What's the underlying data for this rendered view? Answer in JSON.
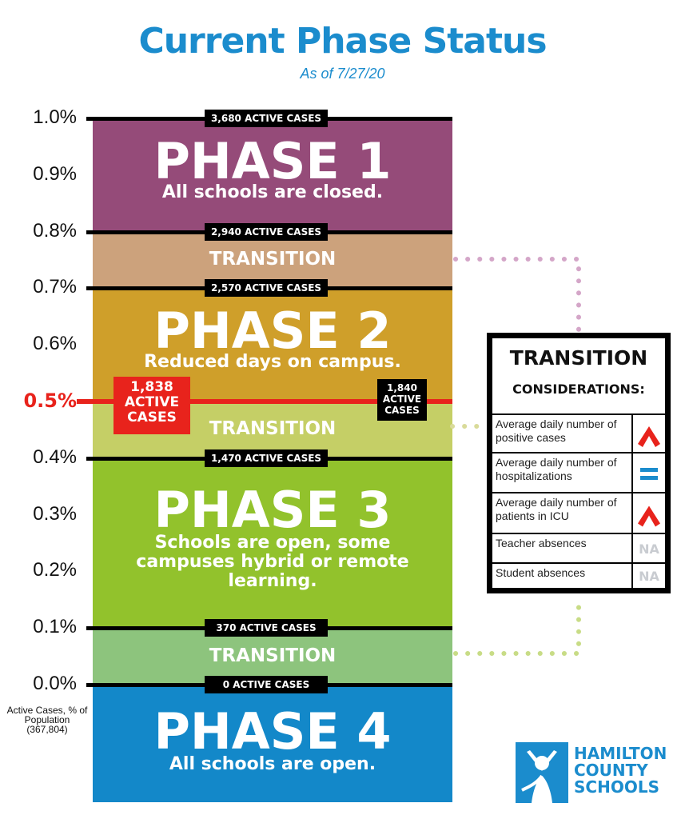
{
  "header": {
    "title": "Current Phase Status",
    "subtitle": "As of 7/27/20"
  },
  "chart_data": {
    "type": "bar",
    "title": "Current Phase Status",
    "subtitle": "As of 7/27/20",
    "ylabel": "Active Cases, % of Population (367,804)",
    "ylim": [
      0,
      1.0
    ],
    "y_ticks": [
      "1.0%",
      "0.9%",
      "0.8%",
      "0.7%",
      "0.6%",
      "0.5%",
      "0.4%",
      "0.3%",
      "0.2%",
      "0.1%",
      "0.0%"
    ],
    "bands": [
      {
        "name": "PHASE 1",
        "subtitle": "All schools are closed.",
        "from": 0.8,
        "to": 1.0,
        "color": "#954b79"
      },
      {
        "name": "TRANSITION",
        "from": 0.7,
        "to": 0.8,
        "color": "#cca27c"
      },
      {
        "name": "PHASE 2",
        "subtitle": "Reduced days on campus.",
        "from": 0.5,
        "to": 0.7,
        "color": "#cf9f2a"
      },
      {
        "name": "TRANSITION",
        "from": 0.4,
        "to": 0.5,
        "color": "#c5cf66"
      },
      {
        "name": "PHASE 3",
        "subtitle": "Schools are open, some campuses hybrid or remote learning.",
        "from": 0.1,
        "to": 0.4,
        "color": "#92c22c"
      },
      {
        "name": "TRANSITION",
        "from": 0.0,
        "to": 0.1,
        "color": "#8dc47d"
      },
      {
        "name": "PHASE 4",
        "subtitle": "All schools are open.",
        "from": null,
        "to": 0.0,
        "color": "#1388c9"
      }
    ],
    "thresholds": [
      {
        "value": 1.0,
        "label": "3,680 ACTIVE CASES"
      },
      {
        "value": 0.8,
        "label": "2,940 ACTIVE CASES"
      },
      {
        "value": 0.7,
        "label": "2,570 ACTIVE CASES"
      },
      {
        "value": 0.4,
        "label": "1,470 ACTIVE CASES"
      },
      {
        "value": 0.1,
        "label": "370 ACTIVE CASES"
      },
      {
        "value": 0.0,
        "label": "0 ACTIVE CASES"
      }
    ],
    "current": {
      "value": 0.5,
      "label": "0.5%",
      "cases_box": [
        "1,838",
        "ACTIVE",
        "CASES"
      ],
      "color": "#e8231c"
    },
    "marker_right": {
      "value": 0.5,
      "lines": [
        "1,840",
        "ACTIVE",
        "CASES"
      ]
    }
  },
  "considerations": {
    "title": "TRANSITION",
    "subtitle": "CONSIDERATIONS:",
    "rows": [
      {
        "label": "Average daily number of positive cases",
        "indicator": "up-arrow-icon",
        "value": ""
      },
      {
        "label": "Average daily number of hospitalizations",
        "indicator": "equals-icon",
        "value": ""
      },
      {
        "label": "Average daily number of patients in ICU",
        "indicator": "up-arrow-icon",
        "value": ""
      },
      {
        "label": "Teacher absences",
        "indicator": "text",
        "value": "NA"
      },
      {
        "label": "Student absences",
        "indicator": "text",
        "value": "NA"
      }
    ],
    "colors": {
      "up": "#e8231c",
      "equal": "#1b8ccd"
    }
  },
  "logo": {
    "lines": [
      "HAMILTON",
      "COUNTY",
      "SCHOOLS"
    ],
    "color": "#1b8ccd"
  }
}
